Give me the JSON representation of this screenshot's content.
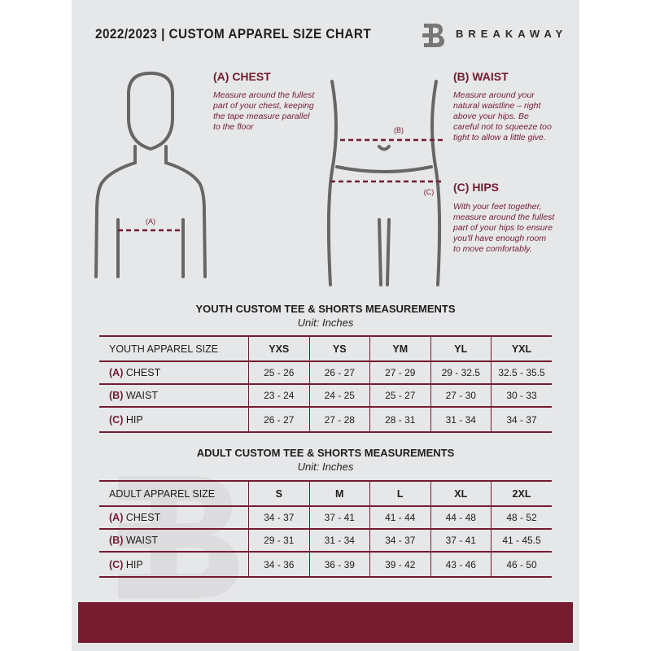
{
  "header": {
    "title": "2022/2023  |  CUSTOM APPAREL SIZE CHART",
    "brand": "BREAKAWAY"
  },
  "measures": {
    "chest": {
      "heading": "(A) CHEST",
      "text": "Measure around the fullest part of your chest, keeping the tape measure parallel to the floor",
      "marker": "(A)"
    },
    "waist": {
      "heading": "(B) WAIST",
      "text": "Measure around your natural waistline – right above your hips. Be careful not to squeeze too tight to allow a little give.",
      "marker": "(B)"
    },
    "hips": {
      "heading": "(C) HIPS",
      "text": "With your feet together, measure around the fullest part of your hips to ensure you'll have enough room to move comfortably.",
      "marker": "(C)"
    }
  },
  "youth": {
    "title": "YOUTH CUSTOM TEE & SHORTS MEASUREMENTS",
    "unit": "Unit: Inches",
    "header": [
      "YOUTH APPAREL SIZE",
      "YXS",
      "YS",
      "YM",
      "YL",
      "YXL"
    ],
    "rows": [
      {
        "tag": "(A)",
        "name": "CHEST",
        "values": [
          "25 - 26",
          "26 - 27",
          "27 - 29",
          "29 - 32.5",
          "32.5 - 35.5"
        ]
      },
      {
        "tag": "(B)",
        "name": "WAIST",
        "values": [
          "23 - 24",
          "24 - 25",
          "25 - 27",
          "27 - 30",
          "30 - 33"
        ]
      },
      {
        "tag": "(C)",
        "name": "HIP",
        "values": [
          "26 - 27",
          "27 - 28",
          "28 - 31",
          "31 - 34",
          "34 - 37"
        ]
      }
    ]
  },
  "adult": {
    "title": "ADULT CUSTOM TEE & SHORTS MEASUREMENTS",
    "unit": "Unit: Inches",
    "header": [
      "ADULT APPAREL SIZE",
      "S",
      "M",
      "L",
      "XL",
      "2XL"
    ],
    "rows": [
      {
        "tag": "(A)",
        "name": "CHEST",
        "values": [
          "34 - 37",
          "37 - 41",
          "41 - 44",
          "44 - 48",
          "48 - 52"
        ]
      },
      {
        "tag": "(B)",
        "name": "WAIST",
        "values": [
          "29 - 31",
          "31 - 34",
          "34 - 37",
          "37 - 41",
          "41 - 45.5"
        ]
      },
      {
        "tag": "(C)",
        "name": "HIP",
        "values": [
          "34 - 36",
          "36 - 39",
          "39 - 42",
          "43 - 46",
          "46 - 50"
        ]
      }
    ]
  },
  "colors": {
    "accent": "#741b30",
    "panel": "#e6e7e9"
  }
}
